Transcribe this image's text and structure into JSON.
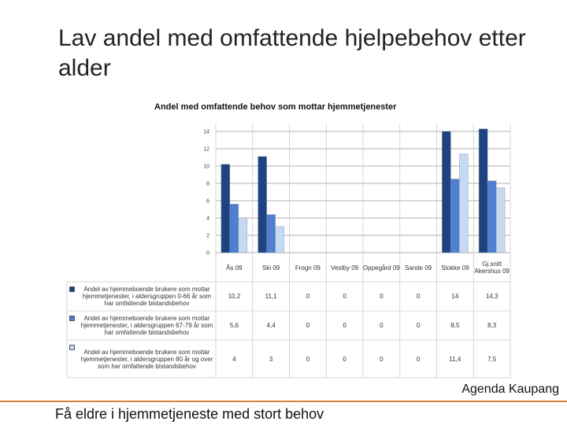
{
  "slide_title": "Lav andel med omfattende hjelpebehov etter alder",
  "footer_brand": "Agenda Kaupang",
  "bottom_text": "Få eldre i hjemmetjeneste med stort behov",
  "chart_data": {
    "type": "bar",
    "title": "Andel med omfattende behov som mottar hjemmetjenester",
    "categories": [
      "Ås 09",
      "Ski 09",
      "Frogn 09",
      "Vestby 09",
      "Oppegård 09",
      "Sande 09",
      "Stokke 09",
      "Gj.snitt Akershus 09"
    ],
    "series": [
      {
        "name": "Andel av hjemmeboende brukere som mottar hjemmetjenester, i aldersgruppen 0-66 år som har omfattende bistandsbehov",
        "color": "#1f4380",
        "values": [
          10.2,
          11.1,
          0,
          0,
          0,
          0,
          14,
          14.3
        ],
        "value_labels": [
          "10,2",
          "11,1",
          "0",
          "0",
          "0",
          "0",
          "14",
          "14,3"
        ]
      },
      {
        "name": "Andel av hjemmeboende brukere som mottar hjemmetjenester, i aldersgruppen 67-79 år som har omfattende bistandsbehov",
        "color": "#4f7fcf",
        "values": [
          5.6,
          4.4,
          0,
          0,
          0,
          0,
          8.5,
          8.3
        ],
        "value_labels": [
          "5,6",
          "4,4",
          "0",
          "0",
          "0",
          "0",
          "8,5",
          "8,3"
        ]
      },
      {
        "name": "Andel av hjemmeboende brukere som mottar hjemmetjenester, i aldersgruppen 80 år og over som har omfattende bistandsbehov",
        "color": "#c6d9f1",
        "values": [
          4,
          3,
          0,
          0,
          0,
          0,
          11.4,
          7.5
        ],
        "value_labels": [
          "4",
          "3",
          "0",
          "0",
          "0",
          "0",
          "11,4",
          "7,5"
        ]
      }
    ],
    "ylim": [
      0,
      14
    ],
    "yticks": [
      0,
      2,
      4,
      6,
      8,
      10,
      12,
      14
    ],
    "grid": true
  }
}
